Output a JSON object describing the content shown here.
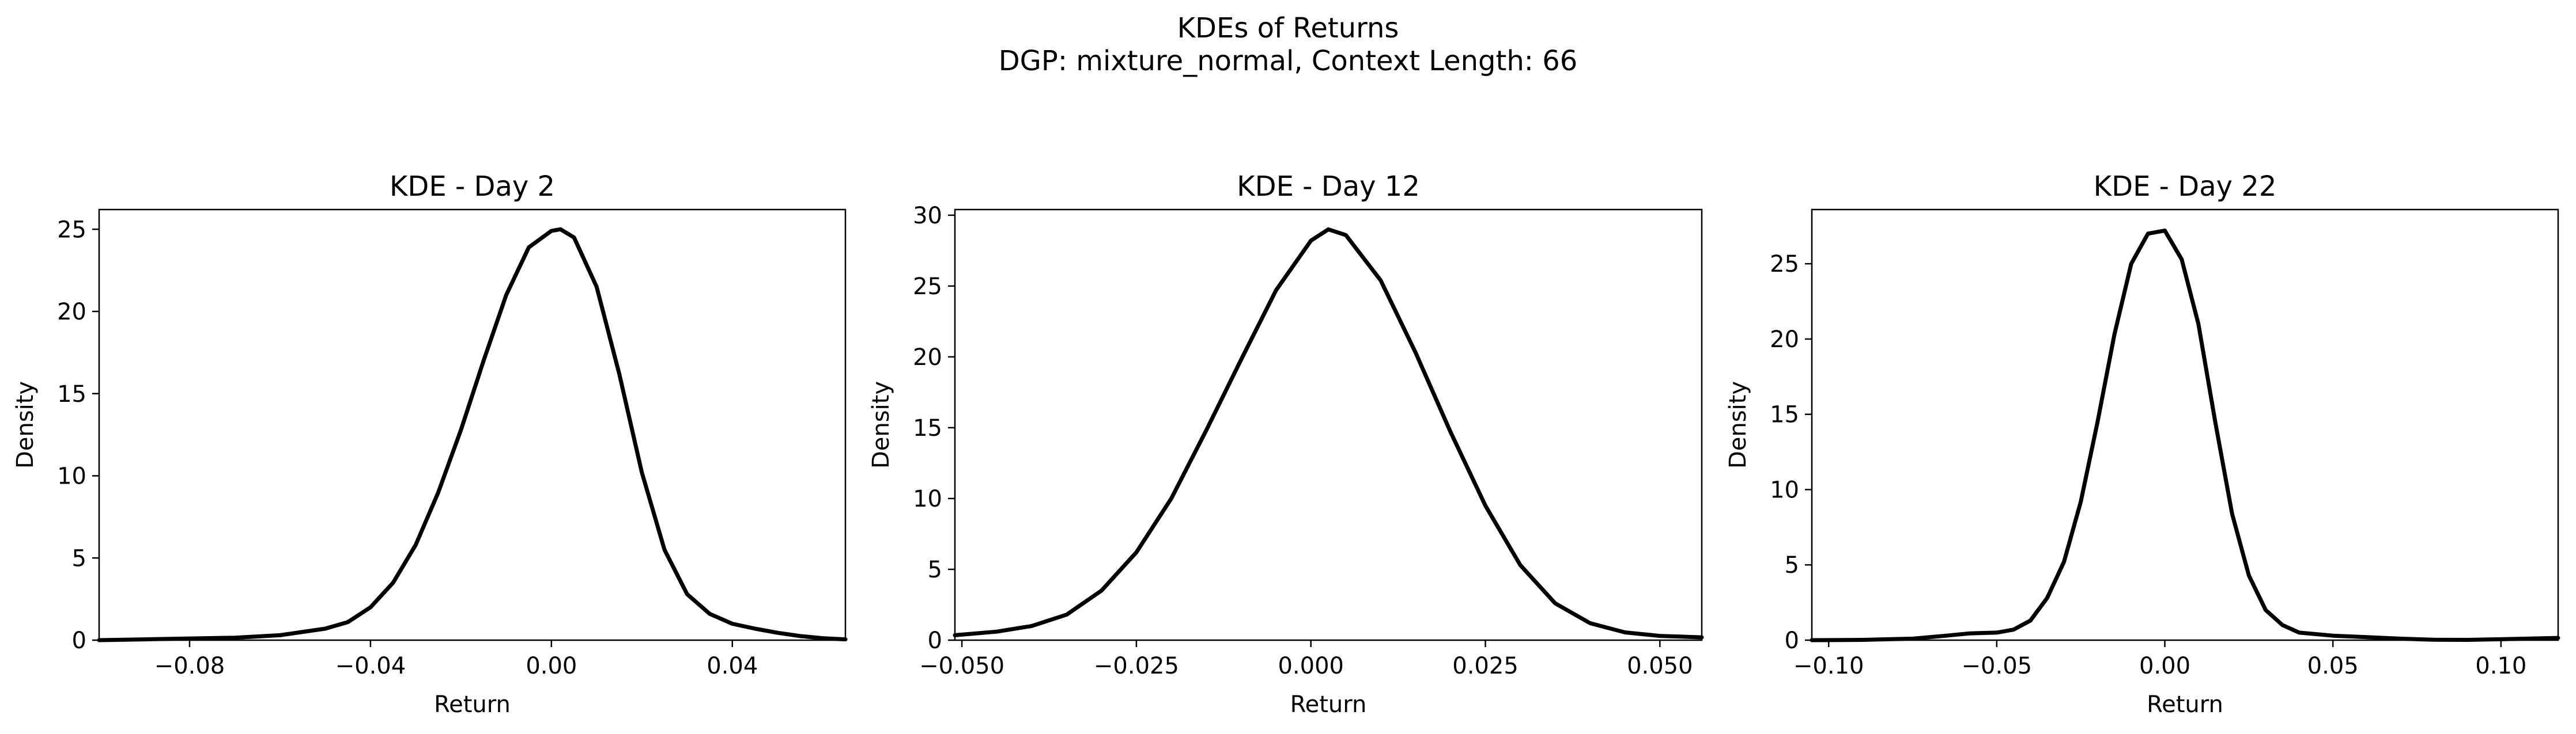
{
  "figure": {
    "title_line1": "KDEs of Returns",
    "title_line2": "DGP: mixture_normal, Context Length: 66"
  },
  "chart_data": [
    {
      "type": "line",
      "title": "KDE - Day 2",
      "xlabel": "Return",
      "ylabel": "Density",
      "xlim": [
        -0.1,
        0.065
      ],
      "ylim": [
        0,
        26.2
      ],
      "xticks": [
        -0.08,
        -0.04,
        0.0,
        0.04
      ],
      "xtick_labels": [
        "−0.08",
        "−0.04",
        "0.00",
        "0.04"
      ],
      "yticks": [
        0,
        5,
        10,
        15,
        20,
        25
      ],
      "ytick_labels": [
        "0",
        "5",
        "10",
        "15",
        "20",
        "25"
      ],
      "grid": false,
      "line_color": "#000000",
      "x": [
        -0.1,
        -0.09,
        -0.08,
        -0.07,
        -0.06,
        -0.05,
        -0.045,
        -0.04,
        -0.035,
        -0.03,
        -0.025,
        -0.02,
        -0.015,
        -0.01,
        -0.005,
        0.0,
        0.002,
        0.005,
        0.01,
        0.015,
        0.02,
        0.025,
        0.03,
        0.035,
        0.04,
        0.045,
        0.05,
        0.055,
        0.06,
        0.065
      ],
      "y": [
        0.0,
        0.05,
        0.1,
        0.15,
        0.3,
        0.7,
        1.1,
        2.0,
        3.5,
        5.8,
        9.0,
        12.8,
        17.0,
        21.0,
        23.9,
        24.9,
        25.0,
        24.5,
        21.5,
        16.2,
        10.2,
        5.5,
        2.8,
        1.6,
        1.0,
        0.7,
        0.45,
        0.25,
        0.12,
        0.05
      ]
    },
    {
      "type": "line",
      "title": "KDE - Day 12",
      "xlabel": "Return",
      "ylabel": "Density",
      "xlim": [
        -0.051,
        0.056
      ],
      "ylim": [
        0,
        30.4
      ],
      "xticks": [
        -0.05,
        -0.025,
        0.0,
        0.025,
        0.05
      ],
      "xtick_labels": [
        "−0.050",
        "−0.025",
        "0.000",
        "0.025",
        "0.050"
      ],
      "yticks": [
        0,
        5,
        10,
        15,
        20,
        25,
        30
      ],
      "ytick_labels": [
        "0",
        "5",
        "10",
        "15",
        "20",
        "25",
        "30"
      ],
      "grid": false,
      "line_color": "#000000",
      "x": [
        -0.051,
        -0.045,
        -0.04,
        -0.035,
        -0.03,
        -0.025,
        -0.02,
        -0.015,
        -0.01,
        -0.005,
        0.0,
        0.0025,
        0.005,
        0.01,
        0.015,
        0.02,
        0.025,
        0.03,
        0.035,
        0.04,
        0.045,
        0.05,
        0.056
      ],
      "y": [
        0.35,
        0.6,
        1.0,
        1.8,
        3.5,
        6.2,
        10.0,
        14.8,
        19.8,
        24.7,
        28.2,
        29.0,
        28.6,
        25.4,
        20.3,
        14.7,
        9.5,
        5.3,
        2.6,
        1.2,
        0.55,
        0.3,
        0.2
      ]
    },
    {
      "type": "line",
      "title": "KDE - Day 22",
      "xlabel": "Return",
      "ylabel": "Density",
      "xlim": [
        -0.105,
        0.117
      ],
      "ylim": [
        0,
        28.6
      ],
      "xticks": [
        -0.1,
        -0.05,
        0.0,
        0.05,
        0.1
      ],
      "xtick_labels": [
        "−0.10",
        "−0.05",
        "0.00",
        "0.05",
        "0.10"
      ],
      "yticks": [
        0,
        5,
        10,
        15,
        20,
        25
      ],
      "ytick_labels": [
        "0",
        "5",
        "10",
        "15",
        "20",
        "25"
      ],
      "grid": false,
      "line_color": "#000000",
      "x": [
        -0.105,
        -0.09,
        -0.075,
        -0.065,
        -0.058,
        -0.05,
        -0.045,
        -0.04,
        -0.035,
        -0.03,
        -0.025,
        -0.02,
        -0.015,
        -0.01,
        -0.005,
        0.0,
        0.005,
        0.01,
        0.015,
        0.02,
        0.025,
        0.03,
        0.035,
        0.04,
        0.05,
        0.06,
        0.07,
        0.08,
        0.09,
        0.1,
        0.117
      ],
      "y": [
        0.0,
        0.02,
        0.1,
        0.3,
        0.45,
        0.5,
        0.7,
        1.3,
        2.8,
        5.2,
        9.2,
        14.5,
        20.3,
        25.0,
        27.0,
        27.2,
        25.3,
        21.0,
        14.5,
        8.4,
        4.3,
        2.0,
        1.0,
        0.5,
        0.3,
        0.2,
        0.1,
        0.03,
        0.02,
        0.06,
        0.15
      ]
    }
  ]
}
